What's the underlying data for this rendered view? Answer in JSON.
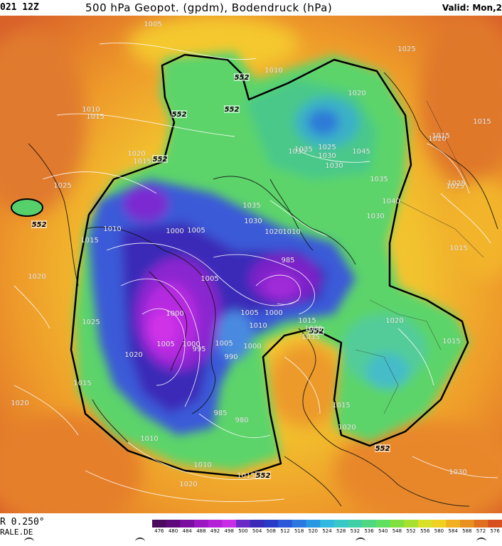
{
  "header": {
    "run": "021 12Z",
    "title": "500 hPa Geopot. (gpdm), Bodendruck (hPa)",
    "valid": "Valid: Mon,2"
  },
  "footer": {
    "model": "R 0.250°",
    "site": "RALE.DE"
  },
  "legend": {
    "values": [
      476,
      480,
      484,
      488,
      492,
      498,
      500,
      504,
      508,
      512,
      518,
      520,
      524,
      528,
      532,
      536,
      540,
      548,
      552,
      556,
      580,
      584,
      588,
      572,
      576
    ],
    "colors": [
      "#4a0a5e",
      "#5e0a7a",
      "#7a0ea0",
      "#9a18c2",
      "#b320d8",
      "#c82ee8",
      "#6a2ac8",
      "#3a2ab8",
      "#2a3ac8",
      "#2a58d8",
      "#2a78e0",
      "#2898e0",
      "#30b8e0",
      "#38c8c8",
      "#40d0a8",
      "#50d880",
      "#60e060",
      "#80e040",
      "#a8e030",
      "#d8e028",
      "#f0d020",
      "#f0b020",
      "#e89020",
      "#e07020",
      "#d85020"
    ],
    "unit": "gpdm"
  },
  "colors": {
    "outer": "#e07a2e",
    "orange": "#ef9a2a",
    "yellow": "#f2c830",
    "lightgreen": "#8fd84a",
    "green": "#4fd06a",
    "teal": "#44c8b0",
    "blue": "#2f6fd8",
    "deepblue": "#2a3ab8",
    "purple": "#7b22c8",
    "magenta": "#c82ae0",
    "line552": "#000000"
  },
  "labels_552": [
    "552",
    "552",
    "552",
    "552",
    "552",
    "552",
    "552",
    "552"
  ],
  "isobars": [
    {
      "t": "1005"
    },
    {
      "t": "1010"
    },
    {
      "t": "1025"
    },
    {
      "t": "1010"
    },
    {
      "t": "1015"
    },
    {
      "t": "1020"
    },
    {
      "t": "1020"
    },
    {
      "t": "1015"
    },
    {
      "t": "1025"
    },
    {
      "t": "1015"
    },
    {
      "t": "1020"
    },
    {
      "t": "1025"
    },
    {
      "t": "1015"
    },
    {
      "t": "1035"
    },
    {
      "t": "1025"
    },
    {
      "t": "1030"
    },
    {
      "t": "1035"
    },
    {
      "t": "1030"
    },
    {
      "t": "1045"
    },
    {
      "t": "1035"
    },
    {
      "t": "1040"
    },
    {
      "t": "1030"
    },
    {
      "t": "1035"
    },
    {
      "t": "1030"
    },
    {
      "t": "1020"
    },
    {
      "t": "1010"
    },
    {
      "t": "1000"
    },
    {
      "t": "1005"
    },
    {
      "t": "1010"
    },
    {
      "t": "1015"
    },
    {
      "t": "1020"
    },
    {
      "t": "985"
    },
    {
      "t": "1005"
    },
    {
      "t": "1000"
    },
    {
      "t": "1005"
    },
    {
      "t": "1000"
    },
    {
      "t": "1010"
    },
    {
      "t": "1025"
    },
    {
      "t": "1005"
    },
    {
      "t": "1000"
    },
    {
      "t": "995"
    },
    {
      "t": "1005"
    },
    {
      "t": "1000"
    },
    {
      "t": "990"
    },
    {
      "t": "1020"
    },
    {
      "t": "1015"
    },
    {
      "t": "1030"
    },
    {
      "t": "1035"
    },
    {
      "t": "1020"
    },
    {
      "t": "1015"
    },
    {
      "t": "1020"
    },
    {
      "t": "1015"
    },
    {
      "t": "985"
    },
    {
      "t": "980"
    },
    {
      "t": "1010"
    },
    {
      "t": "1010"
    },
    {
      "t": "1015"
    },
    {
      "t": "1020"
    },
    {
      "t": "1020"
    },
    {
      "t": "1015"
    },
    {
      "t": "1025"
    },
    {
      "t": "1015"
    },
    {
      "t": "1030"
    }
  ]
}
